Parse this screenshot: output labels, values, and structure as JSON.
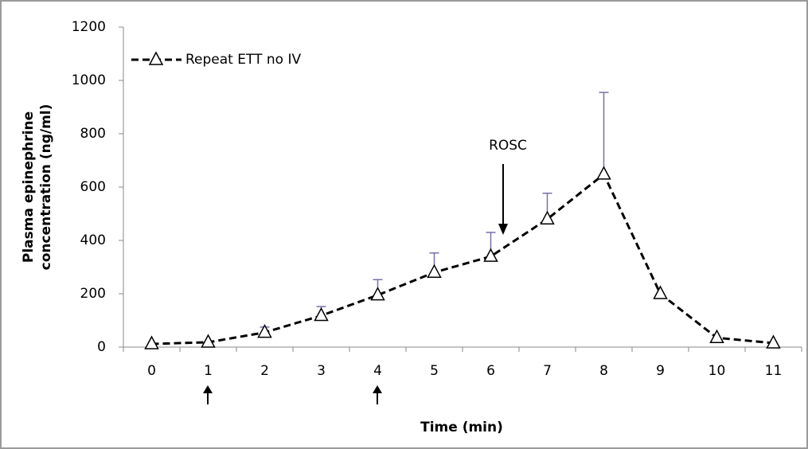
{
  "chart_data": {
    "type": "line",
    "xlabel": "Time (min)",
    "ylabel": [
      "Plasma epinephrine",
      "concentration (ng/ml)"
    ],
    "categories": [
      "0",
      "1",
      "2",
      "3",
      "4",
      "5",
      "6",
      "7",
      "8",
      "9",
      "10",
      "11"
    ],
    "series": [
      {
        "name": "Repeat ETT no IV",
        "color": "#000000",
        "values": [
          12,
          18,
          55,
          118,
          195,
          280,
          340,
          480,
          648,
          200,
          35,
          15
        ],
        "errors": [
          null,
          null,
          20,
          34,
          58,
          73,
          90,
          97,
          307,
          null,
          null,
          null
        ],
        "error_color": "#7b6fa8"
      }
    ],
    "ylim": [
      0,
      1200
    ],
    "yticks": [
      0,
      200,
      400,
      600,
      800,
      1000,
      1200
    ],
    "annotation": "ROSC",
    "legend": "upper-left"
  }
}
